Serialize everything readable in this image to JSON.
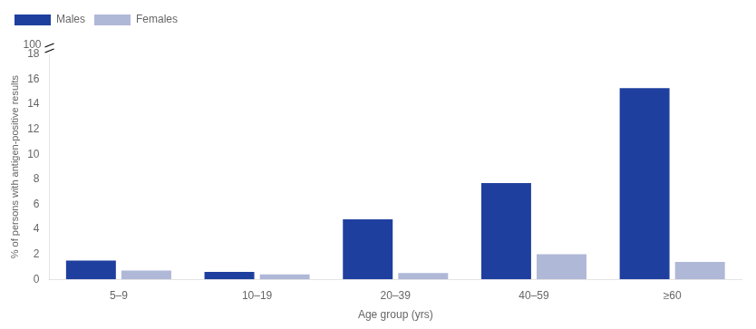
{
  "chart_data": {
    "type": "bar",
    "categories": [
      "5–9",
      "10–19",
      "20–39",
      "40–59",
      "≥60"
    ],
    "series": [
      {
        "name": "Males",
        "color": "#1F3F9F",
        "values": [
          1.5,
          0.6,
          4.8,
          7.7,
          15.3
        ]
      },
      {
        "name": "Females",
        "color": "#B0B8D8",
        "values": [
          0.7,
          0.4,
          0.5,
          2.0,
          1.4
        ]
      }
    ],
    "xlabel": "Age group (yrs)",
    "ylabel": "% of persons with antigen-positive results",
    "ylim": [
      0,
      18
    ],
    "yticks": [
      0,
      2,
      4,
      6,
      8,
      10,
      12,
      14,
      16,
      18
    ],
    "annotations": [
      "100"
    ],
    "grid": false,
    "legend": "upper left"
  }
}
